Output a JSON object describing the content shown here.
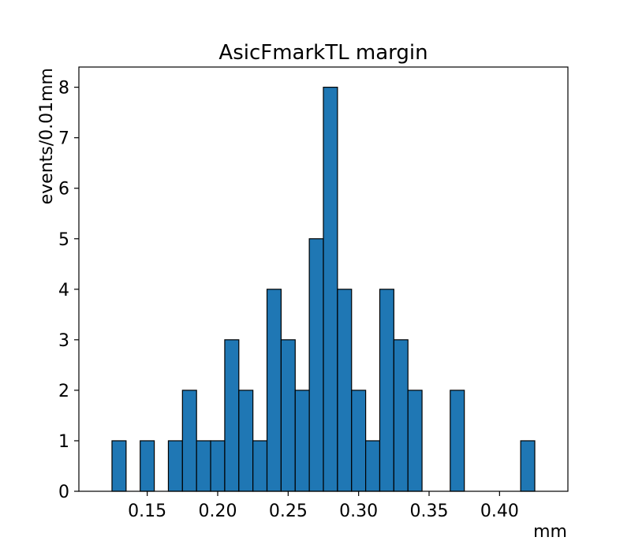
{
  "chart_data": {
    "type": "bar",
    "title": "AsicFmarkTL margin",
    "xlabel": "mm",
    "ylabel": "events/0.01mm",
    "bin_width": 0.01,
    "bin_start": 0.125,
    "values": [
      1,
      0,
      1,
      0,
      1,
      2,
      1,
      1,
      3,
      2,
      1,
      4,
      3,
      2,
      5,
      8,
      4,
      2,
      1,
      4,
      3,
      2,
      0,
      0,
      2,
      0,
      0,
      0,
      0,
      1
    ],
    "xlim": [
      0.1015,
      0.4485
    ],
    "ylim": [
      0,
      8.4
    ],
    "xticks": [
      0.15,
      0.2,
      0.25,
      0.3,
      0.35,
      0.4
    ],
    "xtick_labels": [
      "0.15",
      "0.20",
      "0.25",
      "0.30",
      "0.35",
      "0.40"
    ],
    "yticks": [
      0,
      1,
      2,
      3,
      4,
      5,
      6,
      7,
      8
    ],
    "ytick_labels": [
      "0",
      "1",
      "2",
      "3",
      "4",
      "5",
      "6",
      "7",
      "8"
    ],
    "bar_color": "#1f77b4",
    "edge_color": "#000000",
    "grid": false,
    "legend": "none"
  }
}
